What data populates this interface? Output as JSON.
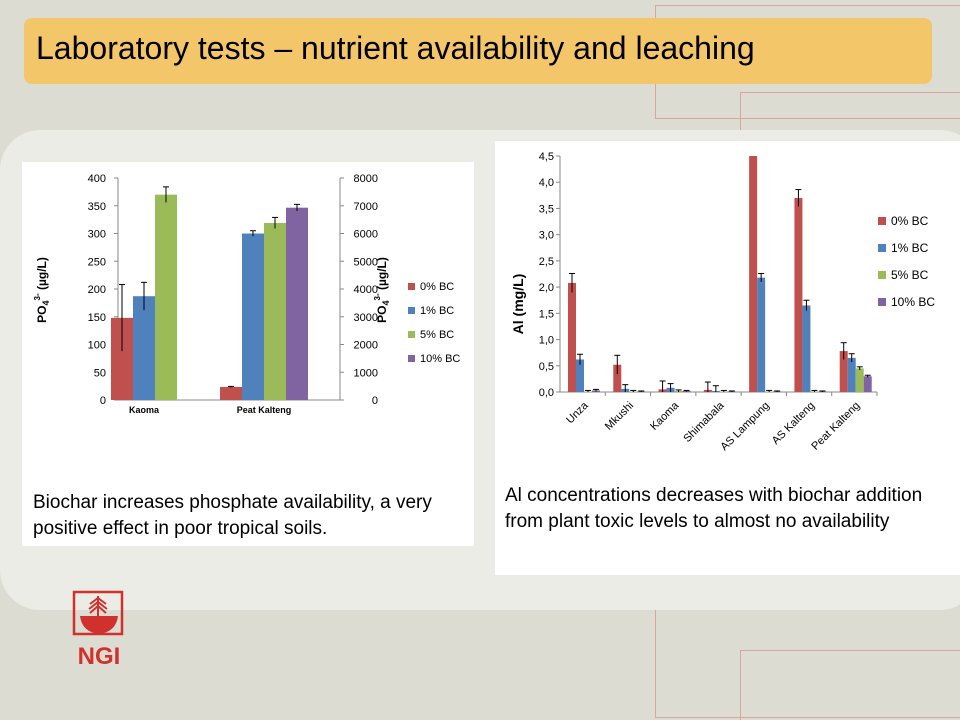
{
  "slide": {
    "title": "Laboratory tests – nutrient availability and leaching",
    "left_caption": "Biochar increases phosphate availability, a very positive effect in poor tropical soils.",
    "right_caption": "Al concentrations decreases with biochar addition from plant toxic levels to almost no availability",
    "logo_text": "NGI",
    "colors": {
      "title_bar": "#f4c66a",
      "series": [
        "#c0504d",
        "#4f81bd",
        "#9bbb59",
        "#8064a2"
      ],
      "logo": "#d0312d"
    }
  },
  "chart_data": [
    {
      "type": "bar",
      "title": "",
      "categories": [
        "Kaoma",
        "Peat Kalteng"
      ],
      "ylabel": "PO4 3- (µg/L)",
      "y2label": "PO4 3- (µg/L)",
      "ylim": [
        0,
        400
      ],
      "y2lim": [
        0,
        8000
      ],
      "yticks": [
        "0",
        "50",
        "100",
        "150",
        "200",
        "250",
        "300",
        "350",
        "400"
      ],
      "y2ticks": [
        "0",
        "1000",
        "2000",
        "3000",
        "4000",
        "5000",
        "6000",
        "7000",
        "8000"
      ],
      "axis_note": "Kaoma on left axis, Peat Kalteng on right axis",
      "series": [
        {
          "name": "0% BC",
          "values": [
            148,
            470
          ],
          "errors": [
            60,
            20
          ]
        },
        {
          "name": "1% BC",
          "values": [
            187,
            6000
          ],
          "errors": [
            25,
            100
          ]
        },
        {
          "name": "5% BC",
          "values": [
            370,
            6380
          ],
          "errors": [
            14,
            200
          ]
        },
        {
          "name": "10% BC",
          "values": [
            null,
            6930
          ],
          "errors": [
            null,
            120
          ]
        }
      ],
      "legend": "right"
    },
    {
      "type": "bar",
      "title": "",
      "categories": [
        "Unza",
        "Mkushi",
        "Kaoma",
        "Shimabala",
        "AS Lampung",
        "AS Kalteng",
        "Peat Kalteng"
      ],
      "ylabel": "Al (mg/L)",
      "ylim": [
        0,
        4.5
      ],
      "yticks": [
        "0,0",
        "0,5",
        "1,0",
        "1,5",
        "2,0",
        "2,5",
        "3,0",
        "3,5",
        "4,0",
        "4,5"
      ],
      "series": [
        {
          "name": "0% BC",
          "values": [
            2.08,
            0.52,
            0.05,
            0.04,
            4.5,
            3.7,
            0.78
          ],
          "errors": [
            0.18,
            0.18,
            0.16,
            0.15,
            0,
            0.16,
            0.16
          ]
        },
        {
          "name": "1% BC",
          "values": [
            0.62,
            0.06,
            0.08,
            0.02,
            2.18,
            1.65,
            0.65
          ],
          "errors": [
            0.1,
            0.08,
            0.08,
            0.1,
            0.08,
            0.1,
            0.08
          ]
        },
        {
          "name": "5% BC",
          "values": [
            0.01,
            0.01,
            0.02,
            0.01,
            0.01,
            0.01,
            0.45
          ],
          "errors": [
            0.02,
            0.02,
            0.02,
            0.02,
            0.02,
            0.02,
            0.03
          ]
        },
        {
          "name": "10% BC",
          "values": [
            0.03,
            0.01,
            0.02,
            0.01,
            0.01,
            0.01,
            0.3
          ],
          "errors": [
            0.02,
            0.01,
            0.01,
            0.01,
            0.01,
            0.01,
            0.02
          ]
        }
      ],
      "legend": "right"
    }
  ]
}
